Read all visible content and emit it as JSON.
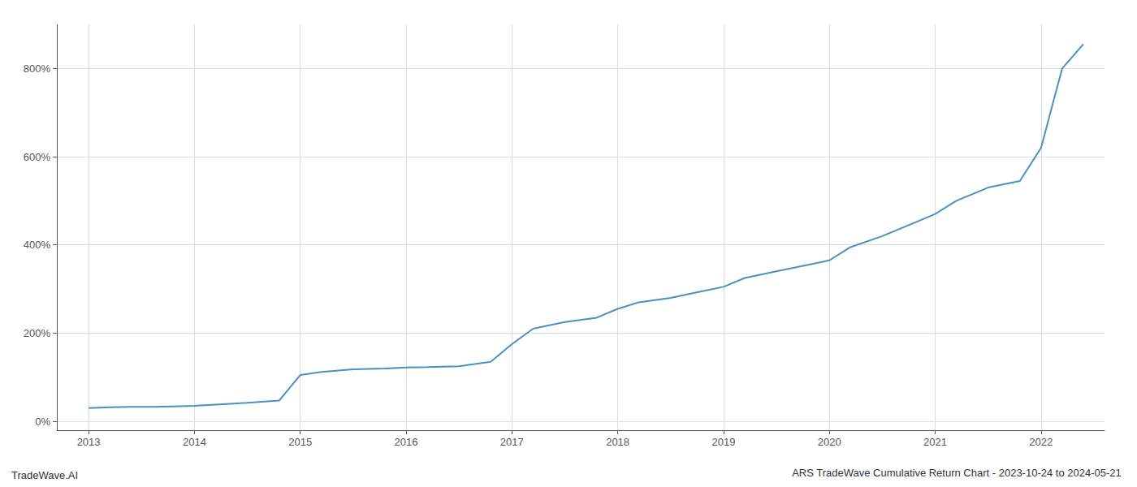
{
  "chart_data": {
    "type": "line",
    "title": "ARS TradeWave Cumulative Return Chart - 2023-10-24 to 2024-05-21",
    "annotations": [
      "TradeWave.AI"
    ],
    "color": "#4a90c4",
    "x": [
      2013.0,
      2013.2,
      2013.4,
      2013.6,
      2013.8,
      2014.0,
      2014.2,
      2014.5,
      2014.8,
      2015.0,
      2015.2,
      2015.5,
      2015.8,
      2016.0,
      2016.2,
      2016.5,
      2016.8,
      2017.0,
      2017.2,
      2017.5,
      2017.8,
      2018.0,
      2018.2,
      2018.5,
      2018.8,
      2019.0,
      2019.2,
      2019.5,
      2019.8,
      2020.0,
      2020.2,
      2020.5,
      2020.8,
      2021.0,
      2021.2,
      2021.5,
      2021.8,
      2022.0,
      2022.2,
      2022.4
    ],
    "values": [
      30,
      32,
      33,
      33,
      34,
      35,
      38,
      42,
      47,
      105,
      112,
      118,
      120,
      122,
      123,
      125,
      135,
      175,
      210,
      225,
      235,
      255,
      270,
      280,
      295,
      305,
      325,
      340,
      355,
      365,
      395,
      420,
      450,
      470,
      500,
      530,
      545,
      620,
      800,
      855
    ],
    "xlim": [
      2012.7,
      2022.6
    ],
    "xticks": [
      2013,
      2014,
      2015,
      2016,
      2017,
      2018,
      2019,
      2020,
      2021,
      2022
    ],
    "ylim": [
      -20,
      900
    ],
    "yticks": [
      {
        "value": 0,
        "label": "0%"
      },
      {
        "value": 200,
        "label": "200%"
      },
      {
        "value": 400,
        "label": "400%"
      },
      {
        "value": 600,
        "label": "600%"
      },
      {
        "value": 800,
        "label": "800%"
      }
    ],
    "grid": true
  }
}
